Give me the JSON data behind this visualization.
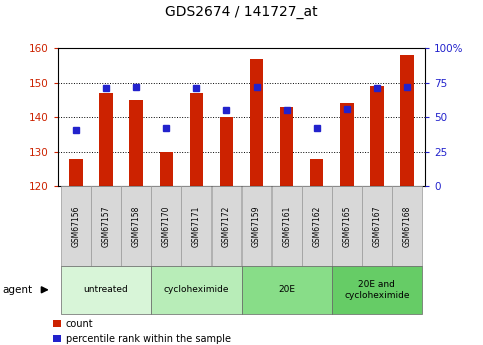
{
  "title": "GDS2674 / 141727_at",
  "samples": [
    "GSM67156",
    "GSM67157",
    "GSM67158",
    "GSM67170",
    "GSM67171",
    "GSM67172",
    "GSM67159",
    "GSM67161",
    "GSM67162",
    "GSM67165",
    "GSM67167",
    "GSM67168"
  ],
  "counts": [
    128,
    147,
    145,
    130,
    147,
    140,
    157,
    143,
    128,
    144,
    149,
    158
  ],
  "percentiles": [
    41,
    71,
    72,
    42,
    71,
    55,
    72,
    55,
    42,
    56,
    71,
    72
  ],
  "ylim_left": [
    120,
    160
  ],
  "ylim_right": [
    0,
    100
  ],
  "yticks_left": [
    120,
    130,
    140,
    150,
    160
  ],
  "yticks_right": [
    0,
    25,
    50,
    75,
    100
  ],
  "bar_color": "#cc2200",
  "dot_color": "#2222cc",
  "bar_bottom": 120,
  "groups": [
    {
      "label": "untreated",
      "start": 0,
      "end": 3,
      "color": "#d8f5d8"
    },
    {
      "label": "cycloheximide",
      "start": 3,
      "end": 6,
      "color": "#b8edb8"
    },
    {
      "label": "20E",
      "start": 6,
      "end": 9,
      "color": "#88dd88"
    },
    {
      "label": "20E and\ncycloheximide",
      "start": 9,
      "end": 12,
      "color": "#66cc66"
    }
  ],
  "agent_label": "agent",
  "legend_count_label": "count",
  "legend_pct_label": "percentile rank within the sample",
  "left_tick_color": "#cc2200",
  "right_tick_color": "#2222cc",
  "tick_label_bg": "#d8d8d8",
  "fig_width": 4.83,
  "fig_height": 3.45,
  "dpi": 100
}
